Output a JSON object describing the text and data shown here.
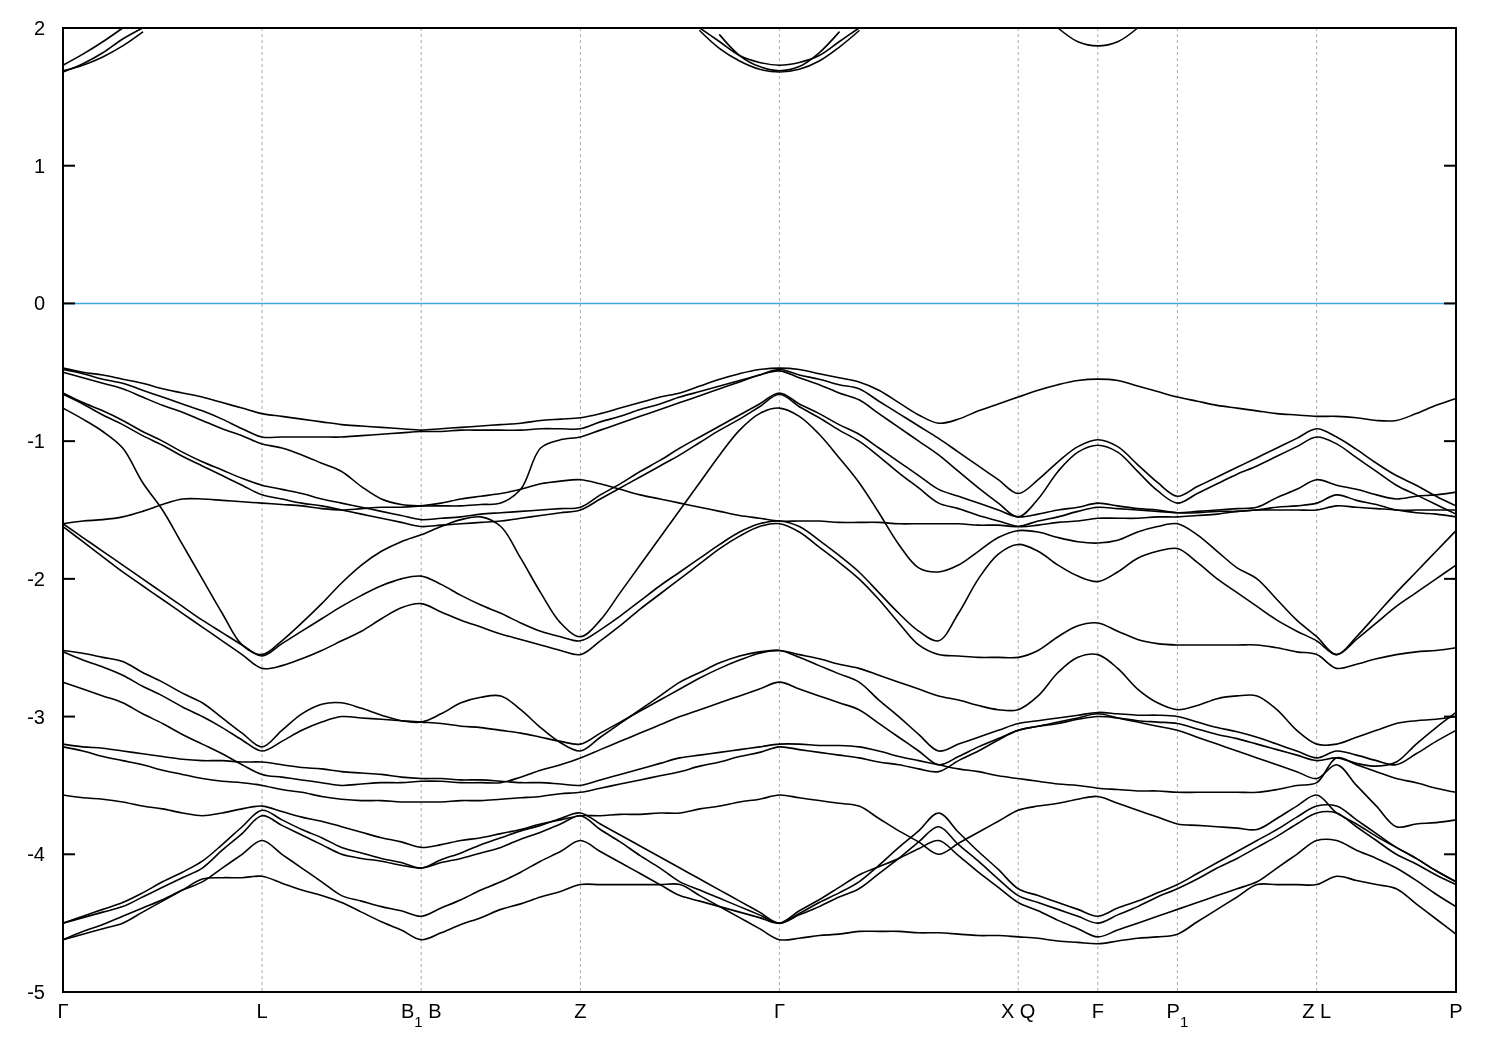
{
  "chart_data": {
    "type": "line",
    "categories": [
      "Γ",
      null,
      null,
      null,
      null,
      null,
      null,
      null,
      null,
      null,
      "L",
      null,
      null,
      null,
      null,
      null,
      null,
      null,
      "B$_{1}$ B",
      null,
      null,
      null,
      null,
      null,
      null,
      null,
      "Z",
      null,
      null,
      null,
      null,
      null,
      null,
      null,
      null,
      null,
      "Γ",
      null,
      null,
      null,
      null,
      null,
      null,
      null,
      null,
      null,
      null,
      null,
      "X Q",
      null,
      null,
      null,
      "F",
      null,
      null,
      null,
      "P$_{1}$",
      null,
      null,
      null,
      null,
      null,
      null,
      "Z L",
      null,
      null,
      null,
      null,
      null,
      null,
      "P"
    ],
    "ylim": [
      -5,
      2
    ],
    "yticks": [
      -5,
      -4,
      -3,
      -2,
      -1,
      0,
      1,
      2
    ],
    "grid": "x",
    "ref_lines": [
      {
        "axis": "y",
        "value": 0,
        "color": "#3fa9e0"
      }
    ],
    "series": [
      {
        "color": "#000000",
        "values": [
          -0.47,
          -0.5,
          -0.52,
          -0.55,
          -0.58,
          -0.62,
          -0.65,
          -0.68,
          -0.72,
          -0.76,
          -0.8,
          -0.82,
          -0.84,
          -0.86,
          -0.88,
          -0.89,
          -0.9,
          -0.91,
          -0.92,
          -0.91,
          -0.9,
          -0.89,
          -0.88,
          -0.87,
          -0.85,
          -0.84,
          -0.83,
          -0.8,
          -0.76,
          -0.72,
          -0.68,
          -0.65,
          -0.6,
          -0.55,
          -0.51,
          -0.48,
          -0.47,
          -0.48,
          -0.51,
          -0.54,
          -0.57,
          -0.63,
          -0.72,
          -0.81,
          -0.87,
          -0.84,
          -0.78,
          -0.73,
          -0.68,
          -0.63,
          -0.59,
          -0.56,
          -0.55,
          -0.56,
          -0.6,
          -0.64,
          -0.68,
          -0.71,
          -0.74,
          -0.76,
          -0.78,
          -0.8,
          -0.81,
          -0.82,
          -0.82,
          -0.83,
          -0.85,
          -0.85,
          -0.8,
          -0.74,
          -0.69
        ]
      },
      {
        "color": "#000000",
        "values": [
          -0.48,
          -0.51,
          -0.55,
          -0.58,
          -0.63,
          -0.68,
          -0.73,
          -0.78,
          -0.84,
          -0.91,
          -0.97,
          -0.97,
          -0.97,
          -0.97,
          -0.97,
          -0.96,
          -0.95,
          -0.94,
          -0.93,
          -0.93,
          -0.92,
          -0.92,
          -0.92,
          -0.92,
          -0.91,
          -0.91,
          -0.91,
          -0.86,
          -0.82,
          -0.77,
          -0.73,
          -0.68,
          -0.64,
          -0.6,
          -0.56,
          -0.52,
          -0.48,
          -0.52,
          -0.55,
          -0.59,
          -0.62,
          -0.71,
          -0.8,
          -0.89,
          -0.98,
          -1.08,
          -1.18,
          -1.28,
          -1.38,
          -1.28,
          -1.15,
          -1.04,
          -0.99,
          -1.04,
          -1.17,
          -1.3,
          -1.4,
          -1.33,
          -1.26,
          -1.19,
          -1.12,
          -1.05,
          -0.98,
          -0.91,
          -0.97,
          -1.06,
          -1.16,
          -1.25,
          -1.32,
          -1.4,
          -1.47
        ]
      },
      {
        "color": "#000000",
        "values": [
          -0.5,
          -0.54,
          -0.58,
          -0.62,
          -0.68,
          -0.74,
          -0.79,
          -0.85,
          -0.91,
          -0.96,
          -1.02,
          -1.05,
          -1.1,
          -1.16,
          -1.22,
          -1.33,
          -1.42,
          -1.46,
          -1.47,
          -1.47,
          -1.47,
          -1.46,
          -1.45,
          -1.35,
          -1.05,
          -0.99,
          -0.97,
          -0.92,
          -0.87,
          -0.82,
          -0.77,
          -0.72,
          -0.67,
          -0.62,
          -0.57,
          -0.52,
          -0.49,
          -0.54,
          -0.59,
          -0.65,
          -0.7,
          -0.8,
          -0.9,
          -1.0,
          -1.1,
          -1.22,
          -1.34,
          -1.45,
          -1.55,
          -1.42,
          -1.22,
          -1.08,
          -1.03,
          -1.08,
          -1.22,
          -1.36,
          -1.45,
          -1.38,
          -1.31,
          -1.24,
          -1.18,
          -1.11,
          -1.04,
          -0.97,
          -1.02,
          -1.12,
          -1.22,
          -1.32,
          -1.39,
          -1.46,
          -1.53
        ]
      },
      {
        "color": "#000000",
        "values": [
          -0.65,
          -0.72,
          -0.78,
          -0.85,
          -0.93,
          -1.0,
          -1.08,
          -1.15,
          -1.21,
          -1.27,
          -1.32,
          -1.35,
          -1.38,
          -1.42,
          -1.45,
          -1.48,
          -1.51,
          -1.54,
          -1.57,
          -1.56,
          -1.55,
          -1.53,
          -1.52,
          -1.51,
          -1.5,
          -1.49,
          -1.48,
          -1.39,
          -1.31,
          -1.22,
          -1.14,
          -1.05,
          -0.97,
          -0.89,
          -0.81,
          -0.73,
          -0.65,
          -0.73,
          -0.8,
          -0.88,
          -0.95,
          -1.05,
          -1.15,
          -1.25,
          -1.35,
          -1.4,
          -1.45,
          -1.5,
          -1.55,
          -1.53,
          -1.5,
          -1.48,
          -1.45,
          -1.47,
          -1.49,
          -1.5,
          -1.52,
          -1.51,
          -1.5,
          -1.49,
          -1.48,
          -1.41,
          -1.35,
          -1.28,
          -1.32,
          -1.35,
          -1.39,
          -1.42,
          -1.4,
          -1.39,
          -1.37
        ]
      },
      {
        "color": "#000000",
        "values": [
          -0.66,
          -0.73,
          -0.81,
          -0.88,
          -0.96,
          -1.03,
          -1.11,
          -1.18,
          -1.25,
          -1.32,
          -1.39,
          -1.42,
          -1.45,
          -1.47,
          -1.5,
          -1.53,
          -1.56,
          -1.59,
          -1.62,
          -1.61,
          -1.6,
          -1.59,
          -1.58,
          -1.56,
          -1.54,
          -1.52,
          -1.5,
          -1.42,
          -1.34,
          -1.26,
          -1.18,
          -1.1,
          -1.01,
          -0.92,
          -0.84,
          -0.75,
          -0.66,
          -0.75,
          -0.83,
          -0.92,
          -1.0,
          -1.11,
          -1.23,
          -1.34,
          -1.45,
          -1.49,
          -1.54,
          -1.58,
          -1.62,
          -1.61,
          -1.59,
          -1.58,
          -1.56,
          -1.56,
          -1.56,
          -1.55,
          -1.55,
          -1.54,
          -1.53,
          -1.51,
          -1.5,
          -1.48,
          -1.47,
          -1.45,
          -1.39,
          -1.43,
          -1.46,
          -1.5,
          -1.5,
          -1.5,
          -1.5
        ]
      },
      {
        "color": "#000000",
        "values": [
          -0.76,
          -0.84,
          -0.93,
          -1.05,
          -1.3,
          -1.5,
          -1.75,
          -2.0,
          -2.25,
          -2.48,
          -2.55,
          -2.45,
          -2.32,
          -2.18,
          -2.03,
          -1.9,
          -1.8,
          -1.73,
          -1.68,
          -1.62,
          -1.57,
          -1.55,
          -1.62,
          -1.85,
          -2.1,
          -2.32,
          -2.42,
          -2.3,
          -2.1,
          -1.9,
          -1.7,
          -1.5,
          -1.3,
          -1.1,
          -0.92,
          -0.8,
          -0.76,
          -0.82,
          -0.95,
          -1.12,
          -1.3,
          -1.52,
          -1.75,
          -1.92,
          -1.95,
          -1.9,
          -1.8,
          -1.7,
          -1.65,
          -1.66,
          -1.7,
          -1.73,
          -1.74,
          -1.72,
          -1.66,
          -1.62,
          -1.6,
          -1.68,
          -1.8,
          -1.92,
          -2.0,
          -2.15,
          -2.3,
          -2.42,
          -2.55,
          -2.42,
          -2.26,
          -2.1,
          -1.95,
          -1.8,
          -1.65
        ]
      },
      {
        "color": "#000000",
        "values": [
          -1.6,
          -1.58,
          -1.57,
          -1.55,
          -1.51,
          -1.46,
          -1.42,
          -1.42,
          -1.43,
          -1.44,
          -1.45,
          -1.46,
          -1.47,
          -1.49,
          -1.5,
          -1.49,
          -1.48,
          -1.48,
          -1.47,
          -1.45,
          -1.42,
          -1.4,
          -1.38,
          -1.35,
          -1.31,
          -1.29,
          -1.28,
          -1.31,
          -1.35,
          -1.39,
          -1.42,
          -1.45,
          -1.48,
          -1.51,
          -1.54,
          -1.56,
          -1.58,
          -1.58,
          -1.58,
          -1.59,
          -1.59,
          -1.59,
          -1.6,
          -1.6,
          -1.6,
          -1.6,
          -1.61,
          -1.61,
          -1.62,
          -1.58,
          -1.55,
          -1.51,
          -1.48,
          -1.49,
          -1.5,
          -1.51,
          -1.52,
          -1.52,
          -1.51,
          -1.51,
          -1.5,
          -1.5,
          -1.5,
          -1.5,
          -1.47,
          -1.48,
          -1.49,
          -1.5,
          -1.52,
          -1.53,
          -1.55
        ]
      },
      {
        "color": "#000000",
        "values": [
          -1.6,
          -1.7,
          -1.8,
          -1.9,
          -2.0,
          -2.1,
          -2.2,
          -2.3,
          -2.39,
          -2.48,
          -2.56,
          -2.47,
          -2.38,
          -2.29,
          -2.2,
          -2.12,
          -2.05,
          -2.0,
          -1.98,
          -2.04,
          -2.12,
          -2.19,
          -2.25,
          -2.32,
          -2.38,
          -2.42,
          -2.45,
          -2.37,
          -2.27,
          -2.16,
          -2.05,
          -1.95,
          -1.85,
          -1.75,
          -1.66,
          -1.6,
          -1.58,
          -1.62,
          -1.72,
          -1.83,
          -1.95,
          -2.1,
          -2.25,
          -2.38,
          -2.45,
          -2.25,
          -2.0,
          -1.82,
          -1.75,
          -1.8,
          -1.9,
          -1.98,
          -2.02,
          -1.95,
          -1.85,
          -1.8,
          -1.78,
          -1.88,
          -2.0,
          -2.1,
          -2.2,
          -2.3,
          -2.38,
          -2.45,
          -2.55,
          -2.44,
          -2.32,
          -2.2,
          -2.1,
          -2.0,
          -1.9
        ]
      },
      {
        "color": "#000000",
        "values": [
          -1.62,
          -1.73,
          -1.84,
          -1.95,
          -2.05,
          -2.15,
          -2.25,
          -2.35,
          -2.45,
          -2.55,
          -2.65,
          -2.63,
          -2.58,
          -2.52,
          -2.45,
          -2.38,
          -2.29,
          -2.21,
          -2.18,
          -2.24,
          -2.3,
          -2.35,
          -2.4,
          -2.44,
          -2.48,
          -2.52,
          -2.55,
          -2.45,
          -2.34,
          -2.22,
          -2.11,
          -2.0,
          -1.89,
          -1.78,
          -1.69,
          -1.62,
          -1.6,
          -1.66,
          -1.77,
          -1.88,
          -2.0,
          -2.15,
          -2.32,
          -2.48,
          -2.55,
          -2.56,
          -2.57,
          -2.57,
          -2.57,
          -2.52,
          -2.42,
          -2.34,
          -2.32,
          -2.38,
          -2.44,
          -2.47,
          -2.48,
          -2.48,
          -2.48,
          -2.48,
          -2.48,
          -2.5,
          -2.53,
          -2.55,
          -2.65,
          -2.62,
          -2.58,
          -2.55,
          -2.53,
          -2.52,
          -2.5
        ]
      },
      {
        "color": "#000000",
        "values": [
          -2.52,
          -2.54,
          -2.57,
          -2.6,
          -2.68,
          -2.75,
          -2.83,
          -2.9,
          -3.01,
          -3.12,
          -3.22,
          -3.1,
          -2.98,
          -2.91,
          -2.9,
          -2.94,
          -2.99,
          -3.03,
          -3.04,
          -2.98,
          -2.9,
          -2.86,
          -2.85,
          -2.95,
          -3.08,
          -3.19,
          -3.25,
          -3.15,
          -3.05,
          -2.95,
          -2.85,
          -2.75,
          -2.68,
          -2.61,
          -2.56,
          -2.53,
          -2.52,
          -2.55,
          -2.58,
          -2.62,
          -2.65,
          -2.7,
          -2.75,
          -2.8,
          -2.85,
          -2.88,
          -2.92,
          -2.95,
          -2.95,
          -2.85,
          -2.68,
          -2.57,
          -2.55,
          -2.65,
          -2.8,
          -2.9,
          -2.95,
          -2.92,
          -2.87,
          -2.85,
          -2.85,
          -2.95,
          -3.1,
          -3.2,
          -3.2,
          -3.15,
          -3.1,
          -3.05,
          -3.03,
          -3.02,
          -3.0
        ]
      },
      {
        "color": "#000000",
        "values": [
          -2.53,
          -2.59,
          -2.64,
          -2.7,
          -2.78,
          -2.85,
          -2.93,
          -3.0,
          -3.08,
          -3.17,
          -3.25,
          -3.18,
          -3.1,
          -3.04,
          -3.0,
          -3.01,
          -3.02,
          -3.03,
          -3.04,
          -3.05,
          -3.07,
          -3.08,
          -3.1,
          -3.12,
          -3.15,
          -3.18,
          -3.2,
          -3.12,
          -3.04,
          -2.96,
          -2.88,
          -2.8,
          -2.72,
          -2.65,
          -2.59,
          -2.54,
          -2.52,
          -2.57,
          -2.63,
          -2.69,
          -2.75,
          -2.88,
          -3.0,
          -3.13,
          -3.25,
          -3.2,
          -3.15,
          -3.1,
          -3.05,
          -3.03,
          -3.01,
          -2.99,
          -2.97,
          -2.98,
          -2.99,
          -2.99,
          -3.0,
          -3.04,
          -3.08,
          -3.11,
          -3.15,
          -3.2,
          -3.25,
          -3.3,
          -3.25,
          -3.28,
          -3.32,
          -3.35,
          -3.27,
          -3.18,
          -3.1
        ]
      },
      {
        "color": "#000000",
        "values": [
          -2.75,
          -2.8,
          -2.85,
          -2.9,
          -2.98,
          -3.05,
          -3.13,
          -3.2,
          -3.27,
          -3.35,
          -3.42,
          -3.44,
          -3.46,
          -3.48,
          -3.5,
          -3.49,
          -3.48,
          -3.48,
          -3.47,
          -3.47,
          -3.48,
          -3.48,
          -3.48,
          -3.44,
          -3.39,
          -3.35,
          -3.3,
          -3.24,
          -3.18,
          -3.12,
          -3.06,
          -3.0,
          -2.95,
          -2.9,
          -2.85,
          -2.8,
          -2.75,
          -2.8,
          -2.85,
          -2.9,
          -2.95,
          -3.05,
          -3.15,
          -3.25,
          -3.35,
          -3.29,
          -3.22,
          -3.16,
          -3.1,
          -3.07,
          -3.05,
          -3.02,
          -3.0,
          -3.01,
          -3.03,
          -3.04,
          -3.05,
          -3.09,
          -3.13,
          -3.16,
          -3.2,
          -3.24,
          -3.28,
          -3.32,
          -3.3,
          -3.34,
          -3.36,
          -3.33,
          -3.2,
          -3.08,
          -2.97
        ]
      },
      {
        "color": "#000000",
        "values": [
          -3.2,
          -3.22,
          -3.23,
          -3.25,
          -3.27,
          -3.29,
          -3.31,
          -3.32,
          -3.32,
          -3.33,
          -3.33,
          -3.35,
          -3.37,
          -3.38,
          -3.4,
          -3.41,
          -3.42,
          -3.44,
          -3.45,
          -3.45,
          -3.46,
          -3.46,
          -3.47,
          -3.48,
          -3.48,
          -3.49,
          -3.5,
          -3.46,
          -3.42,
          -3.38,
          -3.34,
          -3.3,
          -3.28,
          -3.26,
          -3.24,
          -3.22,
          -3.2,
          -3.2,
          -3.21,
          -3.21,
          -3.22,
          -3.25,
          -3.29,
          -3.32,
          -3.35,
          -3.38,
          -3.4,
          -3.43,
          -3.45,
          -3.47,
          -3.49,
          -3.5,
          -3.52,
          -3.53,
          -3.54,
          -3.54,
          -3.55,
          -3.55,
          -3.55,
          -3.55,
          -3.55,
          -3.53,
          -3.5,
          -3.48,
          -3.3,
          -3.35,
          -3.4,
          -3.45,
          -3.48,
          -3.52,
          -3.55
        ]
      },
      {
        "color": "#000000",
        "values": [
          -3.22,
          -3.25,
          -3.29,
          -3.32,
          -3.35,
          -3.39,
          -3.42,
          -3.45,
          -3.47,
          -3.48,
          -3.5,
          -3.53,
          -3.55,
          -3.58,
          -3.6,
          -3.61,
          -3.61,
          -3.62,
          -3.62,
          -3.62,
          -3.61,
          -3.61,
          -3.6,
          -3.59,
          -3.58,
          -3.56,
          -3.55,
          -3.52,
          -3.49,
          -3.46,
          -3.43,
          -3.4,
          -3.36,
          -3.33,
          -3.29,
          -3.26,
          -3.22,
          -3.24,
          -3.26,
          -3.28,
          -3.3,
          -3.33,
          -3.35,
          -3.38,
          -3.4,
          -3.32,
          -3.25,
          -3.17,
          -3.1,
          -3.07,
          -3.04,
          -3.01,
          -2.98,
          -3.01,
          -3.04,
          -3.07,
          -3.1,
          -3.15,
          -3.2,
          -3.25,
          -3.3,
          -3.35,
          -3.4,
          -3.45,
          -3.35,
          -3.5,
          -3.65,
          -3.8,
          -3.78,
          -3.77,
          -3.75
        ]
      },
      {
        "color": "#000000",
        "values": [
          -3.57,
          -3.59,
          -3.6,
          -3.62,
          -3.65,
          -3.67,
          -3.7,
          -3.72,
          -3.7,
          -3.67,
          -3.65,
          -3.69,
          -3.73,
          -3.76,
          -3.8,
          -3.84,
          -3.88,
          -3.91,
          -3.95,
          -3.93,
          -3.9,
          -3.88,
          -3.85,
          -3.82,
          -3.78,
          -3.75,
          -3.72,
          -3.72,
          -3.71,
          -3.71,
          -3.7,
          -3.7,
          -3.67,
          -3.65,
          -3.62,
          -3.6,
          -3.57,
          -3.59,
          -3.61,
          -3.63,
          -3.65,
          -3.74,
          -3.83,
          -3.91,
          -4.0,
          -3.92,
          -3.84,
          -3.76,
          -3.68,
          -3.65,
          -3.63,
          -3.6,
          -3.58,
          -3.63,
          -3.68,
          -3.73,
          -3.78,
          -3.79,
          -3.8,
          -3.81,
          -3.82,
          -3.74,
          -3.65,
          -3.57,
          -3.7,
          -3.78,
          -3.87,
          -3.95,
          -4.03,
          -4.12,
          -4.2
        ]
      },
      {
        "color": "#000000",
        "values": [
          -4.5,
          -4.45,
          -4.4,
          -4.35,
          -4.28,
          -4.2,
          -4.13,
          -4.05,
          -3.93,
          -3.8,
          -3.68,
          -3.75,
          -3.82,
          -3.88,
          -3.95,
          -3.99,
          -4.03,
          -4.06,
          -4.1,
          -4.04,
          -3.99,
          -3.93,
          -3.88,
          -3.83,
          -3.79,
          -3.74,
          -3.7,
          -3.78,
          -3.86,
          -3.94,
          -4.02,
          -4.1,
          -4.18,
          -4.26,
          -4.34,
          -4.42,
          -4.5,
          -4.43,
          -4.35,
          -4.28,
          -4.2,
          -4.08,
          -3.95,
          -3.83,
          -3.7,
          -3.84,
          -3.98,
          -4.11,
          -4.25,
          -4.3,
          -4.35,
          -4.4,
          -4.45,
          -4.39,
          -4.34,
          -4.28,
          -4.22,
          -4.14,
          -4.06,
          -3.98,
          -3.9,
          -3.82,
          -3.73,
          -3.65,
          -3.65,
          -3.75,
          -3.85,
          -3.95,
          -4.03,
          -4.12,
          -4.2
        ]
      },
      {
        "color": "#000000",
        "values": [
          -4.5,
          -4.46,
          -4.42,
          -4.38,
          -4.31,
          -4.24,
          -4.17,
          -4.1,
          -3.97,
          -3.85,
          -3.72,
          -3.79,
          -3.86,
          -3.93,
          -4.0,
          -4.03,
          -4.05,
          -4.08,
          -4.1,
          -4.06,
          -4.03,
          -3.99,
          -3.95,
          -3.89,
          -3.84,
          -3.78,
          -3.72,
          -3.82,
          -3.91,
          -4.01,
          -4.1,
          -4.2,
          -4.26,
          -4.32,
          -4.38,
          -4.44,
          -4.5,
          -4.44,
          -4.38,
          -4.31,
          -4.25,
          -4.14,
          -4.03,
          -3.91,
          -3.8,
          -3.93,
          -4.05,
          -4.18,
          -4.3,
          -4.35,
          -4.4,
          -4.45,
          -4.5,
          -4.44,
          -4.38,
          -4.31,
          -4.25,
          -4.18,
          -4.1,
          -4.03,
          -3.95,
          -3.87,
          -3.78,
          -3.7,
          -3.7,
          -3.8,
          -3.9,
          -4.0,
          -4.07,
          -4.15,
          -4.22
        ]
      },
      {
        "color": "#000000",
        "values": [
          -4.62,
          -4.56,
          -4.51,
          -4.45,
          -4.39,
          -4.33,
          -4.26,
          -4.2,
          -4.1,
          -4.0,
          -3.9,
          -4.0,
          -4.1,
          -4.2,
          -4.3,
          -4.34,
          -4.38,
          -4.41,
          -4.45,
          -4.39,
          -4.33,
          -4.26,
          -4.2,
          -4.13,
          -4.05,
          -3.98,
          -3.9,
          -3.98,
          -4.06,
          -4.14,
          -4.22,
          -4.3,
          -4.34,
          -4.38,
          -4.42,
          -4.46,
          -4.5,
          -4.41,
          -4.33,
          -4.24,
          -4.15,
          -4.09,
          -4.03,
          -3.96,
          -3.9,
          -4.01,
          -4.13,
          -4.24,
          -4.35,
          -4.41,
          -4.48,
          -4.54,
          -4.6,
          -4.55,
          -4.5,
          -4.45,
          -4.4,
          -4.35,
          -4.3,
          -4.25,
          -4.2,
          -4.1,
          -4.0,
          -3.9,
          -3.9,
          -3.97,
          -4.03,
          -4.1,
          -4.19,
          -4.29,
          -4.38
        ]
      },
      {
        "color": "#000000",
        "values": [
          -4.62,
          -4.58,
          -4.54,
          -4.5,
          -4.42,
          -4.34,
          -4.26,
          -4.18,
          -4.17,
          -4.17,
          -4.16,
          -4.21,
          -4.26,
          -4.3,
          -4.35,
          -4.42,
          -4.49,
          -4.55,
          -4.62,
          -4.57,
          -4.51,
          -4.46,
          -4.4,
          -4.36,
          -4.31,
          -4.27,
          -4.22,
          -4.22,
          -4.22,
          -4.22,
          -4.22,
          -4.22,
          -4.3,
          -4.38,
          -4.46,
          -4.54,
          -4.62,
          -4.61,
          -4.59,
          -4.58,
          -4.56,
          -4.56,
          -4.56,
          -4.57,
          -4.57,
          -4.58,
          -4.59,
          -4.59,
          -4.6,
          -4.61,
          -4.63,
          -4.64,
          -4.65,
          -4.63,
          -4.61,
          -4.6,
          -4.58,
          -4.49,
          -4.4,
          -4.31,
          -4.22,
          -4.22,
          -4.22,
          -4.22,
          -4.16,
          -4.19,
          -4.22,
          -4.25,
          -4.36,
          -4.47,
          -4.58
        ]
      },
      {
        "color": "#000000",
        "values": [
          1.73,
          1.81,
          1.9,
          2.0,
          null,
          null,
          null,
          null,
          null,
          null,
          null,
          null,
          null,
          null,
          null,
          null,
          null,
          null,
          null,
          null,
          null,
          null,
          null,
          null,
          null,
          null,
          null,
          null,
          null,
          null,
          null,
          null,
          null,
          null,
          null,
          null,
          null,
          null,
          null,
          null,
          null,
          null,
          null,
          null,
          null,
          null,
          null,
          null,
          null,
          null,
          null,
          null,
          null,
          null,
          null,
          null,
          null,
          null,
          null,
          null,
          null,
          null,
          null,
          null,
          null,
          null,
          null,
          null,
          null,
          null,
          null
        ]
      },
      {
        "color": "#000000",
        "values": [
          1.68,
          1.74,
          1.82,
          1.92,
          2.0,
          null,
          null,
          null,
          null,
          null,
          null,
          null,
          null,
          null,
          null,
          null,
          null,
          null,
          null,
          null,
          null,
          null,
          null,
          null,
          null,
          null,
          null,
          null,
          null,
          null,
          null,
          null,
          null,
          null,
          null,
          null,
          null,
          null,
          null,
          null,
          null,
          null,
          null,
          null,
          null,
          null,
          null,
          null,
          null,
          null,
          null,
          null,
          null,
          null,
          null,
          null,
          null,
          null,
          null,
          null,
          null,
          null,
          null,
          null,
          null,
          null,
          null,
          null,
          null,
          null,
          null
        ]
      },
      {
        "color": "#000000",
        "values": [
          1.69,
          1.73,
          1.79,
          1.87,
          1.97,
          null,
          null,
          null,
          null,
          null,
          null,
          null,
          null,
          null,
          null,
          null,
          null,
          null,
          null,
          null,
          null,
          null,
          null,
          null,
          null,
          null,
          null,
          null,
          null,
          null,
          null,
          null,
          null,
          null,
          null,
          null,
          null,
          null,
          null,
          null,
          null,
          null,
          null,
          null,
          null,
          null,
          null,
          null,
          null,
          null,
          null,
          null,
          null,
          null,
          null,
          null,
          null,
          null,
          null,
          null,
          null,
          null,
          null,
          null,
          null,
          null,
          null,
          null,
          null,
          null,
          null
        ]
      },
      {
        "color": "#000000",
        "values": [
          null,
          null,
          null,
          null,
          null,
          null,
          null,
          null,
          null,
          null,
          null,
          null,
          null,
          null,
          null,
          null,
          null,
          null,
          null,
          null,
          null,
          null,
          null,
          null,
          null,
          null,
          null,
          null,
          null,
          null,
          null,
          null,
          2.0,
          1.9,
          1.8,
          1.75,
          1.73,
          1.75,
          1.8,
          1.9,
          2.0,
          null,
          null,
          null,
          null,
          null,
          null,
          null,
          null,
          null,
          null,
          null,
          null,
          null,
          null,
          null,
          null,
          null,
          null,
          null,
          null,
          null,
          null,
          null,
          null,
          null,
          null,
          null,
          null,
          null,
          null
        ]
      },
      {
        "color": "#000000",
        "values": [
          null,
          null,
          null,
          null,
          null,
          null,
          null,
          null,
          null,
          null,
          null,
          null,
          null,
          null,
          null,
          null,
          null,
          null,
          null,
          null,
          null,
          null,
          null,
          null,
          null,
          null,
          null,
          null,
          null,
          null,
          null,
          null,
          1.98,
          1.85,
          1.76,
          1.7,
          1.68,
          1.7,
          1.76,
          1.86,
          1.98,
          null,
          null,
          null,
          null,
          null,
          null,
          null,
          null,
          null,
          null,
          null,
          null,
          null,
          null,
          null,
          null,
          null,
          null,
          null,
          null,
          null,
          null,
          null,
          null,
          null,
          null,
          null,
          null,
          null,
          null
        ]
      },
      {
        "color": "#000000",
        "values": [
          null,
          null,
          null,
          null,
          null,
          null,
          null,
          null,
          null,
          null,
          null,
          null,
          null,
          null,
          null,
          null,
          null,
          null,
          null,
          null,
          null,
          null,
          null,
          null,
          null,
          null,
          null,
          null,
          null,
          null,
          null,
          null,
          null,
          1.95,
          1.8,
          1.72,
          1.69,
          1.72,
          1.82,
          1.97,
          null,
          null,
          null,
          null,
          null,
          null,
          null,
          null,
          null,
          null,
          null,
          null,
          null,
          null,
          null,
          null,
          null,
          null,
          null,
          null,
          null,
          null,
          null,
          null,
          null,
          null,
          null,
          null,
          null,
          null,
          null
        ]
      },
      {
        "color": "#000000",
        "values": [
          null,
          null,
          null,
          null,
          null,
          null,
          null,
          null,
          null,
          null,
          null,
          null,
          null,
          null,
          null,
          null,
          null,
          null,
          null,
          null,
          null,
          null,
          null,
          null,
          null,
          null,
          null,
          null,
          null,
          null,
          null,
          null,
          null,
          null,
          null,
          null,
          null,
          null,
          null,
          null,
          null,
          null,
          null,
          null,
          null,
          null,
          null,
          null,
          null,
          null,
          2.0,
          1.9,
          1.87,
          1.9,
          2.0,
          null,
          null,
          null,
          null,
          null,
          null,
          null,
          null,
          null,
          null,
          null,
          null,
          null,
          null,
          null,
          null
        ]
      }
    ]
  }
}
